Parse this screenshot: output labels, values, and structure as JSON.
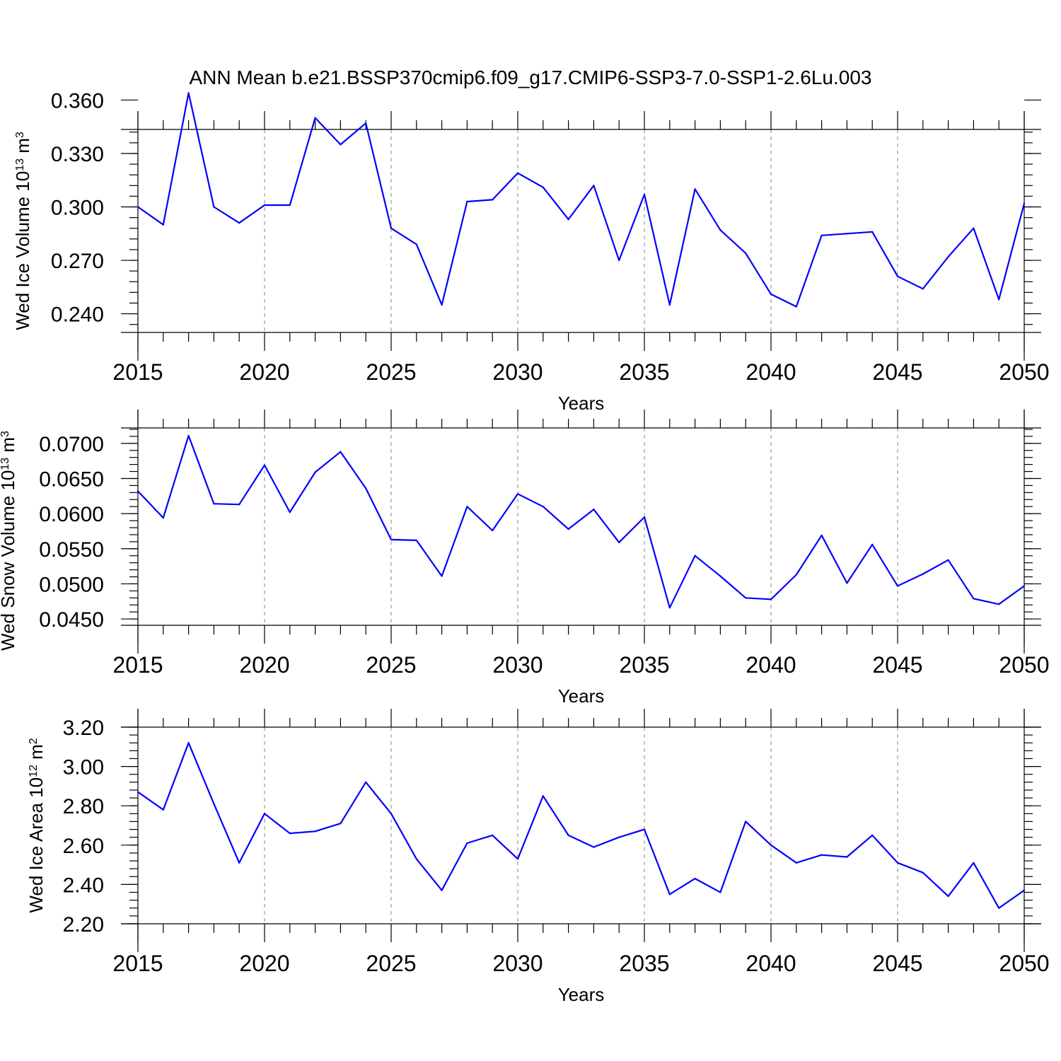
{
  "title": "ANN Mean b.e21.BSSP370cmip6.f09_g17.CMIP6-SSP3-7.0-SSP1-2.6Lu.003",
  "colors": {
    "line": "#0000ff",
    "axis": "#000000",
    "grid": "#999999"
  },
  "chart_data": [
    {
      "type": "line",
      "xlabel": "Years",
      "ylabel": {
        "prefix": "Wed Ice Volume 10",
        "exp": "13",
        "unit": " m",
        "unit_exp": "3"
      },
      "xlim": [
        2015,
        2050
      ],
      "ylim": [
        0.2295,
        0.3435
      ],
      "x_ticks": [
        "2015",
        "2020",
        "2025",
        "2030",
        "2035",
        "2040",
        "2045",
        "2050"
      ],
      "y_ticks": [
        "0.240",
        "0.270",
        "0.300",
        "0.330",
        "0.360"
      ],
      "y_tick_values": [
        0.24,
        0.27,
        0.3,
        0.33,
        0.36
      ],
      "x": [
        2015,
        2016,
        2017,
        2018,
        2019,
        2020,
        2021,
        2022,
        2023,
        2024,
        2025,
        2026,
        2027,
        2028,
        2029,
        2030,
        2031,
        2032,
        2033,
        2034,
        2035,
        2036,
        2037,
        2038,
        2039,
        2040,
        2041,
        2042,
        2043,
        2044,
        2045,
        2046,
        2047,
        2048,
        2049,
        2050
      ],
      "values": [
        0.3,
        0.29,
        0.364,
        0.3,
        0.291,
        0.301,
        0.301,
        0.35,
        0.335,
        0.347,
        0.288,
        0.279,
        0.245,
        0.303,
        0.304,
        0.319,
        0.311,
        0.293,
        0.312,
        0.27,
        0.307,
        0.245,
        0.31,
        0.287,
        0.274,
        0.251,
        0.244,
        0.284,
        0.285,
        0.286,
        0.261,
        0.254,
        0.272,
        0.288,
        0.248,
        0.302
      ]
    },
    {
      "type": "line",
      "xlabel": "Years",
      "ylabel": {
        "prefix": "Wed Snow Volume 10",
        "exp": "13",
        "unit": " m",
        "unit_exp": "3"
      },
      "xlim": [
        2015,
        2050
      ],
      "ylim": [
        0.0441,
        0.0722
      ],
      "x_ticks": [
        "2015",
        "2020",
        "2025",
        "2030",
        "2035",
        "2040",
        "2045",
        "2050"
      ],
      "y_ticks": [
        "0.0450",
        "0.0500",
        "0.0550",
        "0.0600",
        "0.0650",
        "0.0700"
      ],
      "y_tick_values": [
        0.045,
        0.05,
        0.055,
        0.06,
        0.065,
        0.07
      ],
      "x": [
        2015,
        2016,
        2017,
        2018,
        2019,
        2020,
        2021,
        2022,
        2023,
        2024,
        2025,
        2026,
        2027,
        2028,
        2029,
        2030,
        2031,
        2032,
        2033,
        2034,
        2035,
        2036,
        2037,
        2038,
        2039,
        2040,
        2041,
        2042,
        2043,
        2044,
        2045,
        2046,
        2047,
        2048,
        2049,
        2050
      ],
      "values": [
        0.0632,
        0.0594,
        0.0711,
        0.0614,
        0.0613,
        0.0669,
        0.0602,
        0.0659,
        0.0688,
        0.0636,
        0.0563,
        0.0562,
        0.0511,
        0.061,
        0.0576,
        0.0628,
        0.061,
        0.0578,
        0.0606,
        0.0559,
        0.0595,
        0.0466,
        0.054,
        0.0511,
        0.048,
        0.0478,
        0.0513,
        0.0569,
        0.0501,
        0.0556,
        0.0497,
        0.0514,
        0.0534,
        0.0479,
        0.0471,
        0.0497
      ]
    },
    {
      "type": "line",
      "xlabel": "Years",
      "ylabel": {
        "prefix": "Wed Ice Area 10",
        "exp": "12",
        "unit": " m",
        "unit_exp": "2"
      },
      "xlim": [
        2015,
        2050
      ],
      "ylim": [
        2.2,
        3.2
      ],
      "x_ticks": [
        "2015",
        "2020",
        "2025",
        "2030",
        "2035",
        "2040",
        "2045",
        "2050"
      ],
      "y_ticks": [
        "2.20",
        "2.40",
        "2.60",
        "2.80",
        "3.00",
        "3.20"
      ],
      "y_tick_values": [
        2.2,
        2.4,
        2.6,
        2.8,
        3.0,
        3.2
      ],
      "x": [
        2015,
        2016,
        2017,
        2018,
        2019,
        2020,
        2021,
        2022,
        2023,
        2024,
        2025,
        2026,
        2027,
        2028,
        2029,
        2030,
        2031,
        2032,
        2033,
        2034,
        2035,
        2036,
        2037,
        2038,
        2039,
        2040,
        2041,
        2042,
        2043,
        2044,
        2045,
        2046,
        2047,
        2048,
        2049,
        2050
      ],
      "values": [
        2.87,
        2.78,
        3.12,
        2.81,
        2.51,
        2.76,
        2.66,
        2.67,
        2.71,
        2.92,
        2.76,
        2.53,
        2.37,
        2.61,
        2.65,
        2.53,
        2.85,
        2.65,
        2.59,
        2.64,
        2.68,
        2.35,
        2.43,
        2.36,
        2.72,
        2.6,
        2.51,
        2.55,
        2.54,
        2.65,
        2.51,
        2.46,
        2.34,
        2.51,
        2.28,
        2.37
      ]
    }
  ]
}
